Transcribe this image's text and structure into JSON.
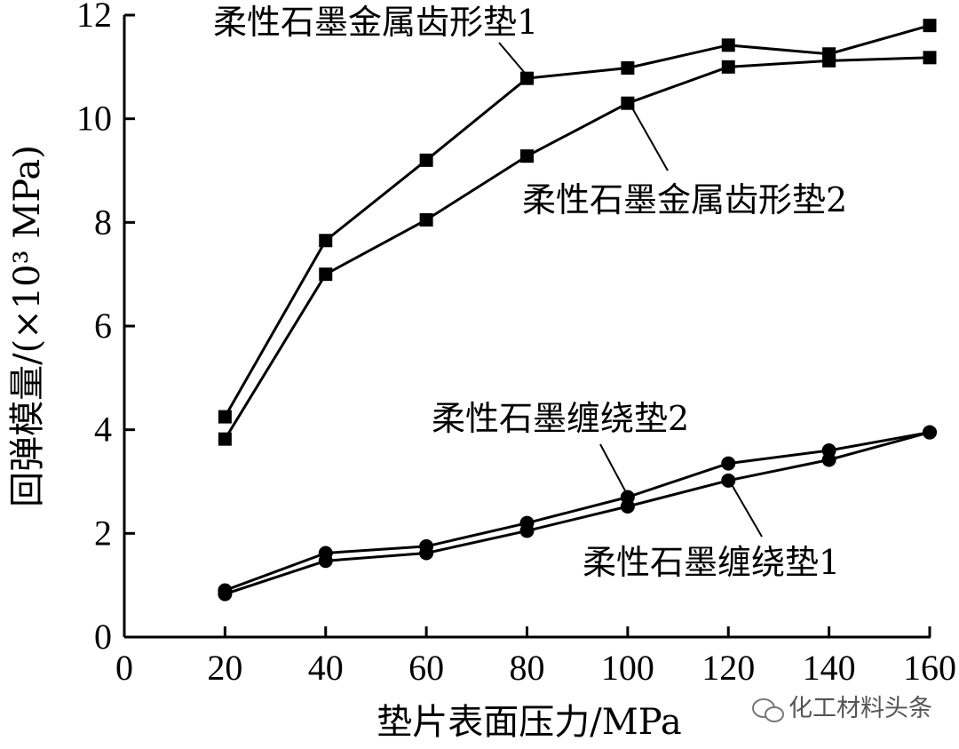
{
  "chart_data": {
    "type": "line",
    "xlabel": "垫片表面压力/MPa",
    "ylabel": "回弹模量/(×10³ MPa)",
    "xlim": [
      0,
      160
    ],
    "ylim": [
      0,
      12
    ],
    "x_ticks": [
      0,
      20,
      40,
      60,
      80,
      100,
      120,
      140,
      160
    ],
    "y_ticks": [
      0,
      2,
      4,
      6,
      8,
      10,
      12
    ],
    "grid": false,
    "x": [
      20,
      40,
      60,
      80,
      100,
      120,
      140,
      160
    ],
    "series": [
      {
        "name": "柔性石墨金属齿形垫1",
        "marker": "square",
        "values": [
          4.25,
          7.65,
          9.2,
          10.78,
          10.98,
          11.42,
          11.25,
          11.8
        ]
      },
      {
        "name": "柔性石墨金属齿形垫2",
        "marker": "square",
        "values": [
          3.82,
          7.0,
          8.05,
          9.28,
          10.3,
          11.0,
          11.12,
          11.18
        ]
      },
      {
        "name": "柔性石墨缠绕垫2",
        "marker": "circle",
        "values": [
          0.9,
          1.62,
          1.75,
          2.2,
          2.7,
          3.35,
          3.6,
          3.95
        ]
      },
      {
        "name": "柔性石墨缠绕垫1",
        "marker": "circle",
        "values": [
          0.83,
          1.47,
          1.62,
          2.05,
          2.52,
          3.02,
          3.42,
          3.95
        ]
      }
    ],
    "annotations": [
      "柔性石墨金属齿形垫1",
      "柔性石墨金属齿形垫2",
      "柔性石墨缠绕垫2",
      "柔性石墨缠绕垫1"
    ]
  },
  "watermark": {
    "text": "化工材料头条",
    "icon": "wechat-icon"
  }
}
